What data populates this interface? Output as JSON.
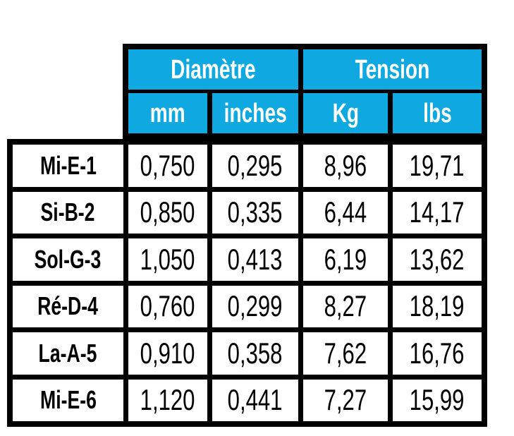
{
  "table": {
    "column_groups": [
      {
        "label": "Diamètre",
        "span": [
          "mm",
          "inches"
        ]
      },
      {
        "label": "Tension",
        "span": [
          "Kg",
          "lbs"
        ]
      }
    ],
    "columns": [
      "mm",
      "inches",
      "Kg",
      "lbs"
    ],
    "rows": [
      {
        "label": "Mi-E-1",
        "values": [
          "0,750",
          "0,295",
          "8,96",
          "19,71"
        ]
      },
      {
        "label": "Si-B-2",
        "values": [
          "0,850",
          "0,335",
          "6,44",
          "14,17"
        ]
      },
      {
        "label": "Sol-G-3",
        "values": [
          "1,050",
          "0,413",
          "6,19",
          "13,62"
        ]
      },
      {
        "label": "Ré-D-4",
        "values": [
          "0,760",
          "0,299",
          "8,27",
          "18,19"
        ]
      },
      {
        "label": "La-A-5",
        "values": [
          "0,910",
          "0,358",
          "7,62",
          "16,76"
        ]
      },
      {
        "label": "Mi-E-6",
        "values": [
          "1,120",
          "0,441",
          "7,27",
          "15,99"
        ]
      }
    ]
  },
  "chart_data": {
    "type": "table",
    "title": "",
    "column_groups": [
      {
        "label": "Diamètre",
        "columns": [
          "mm",
          "inches"
        ]
      },
      {
        "label": "Tension",
        "columns": [
          "Kg",
          "lbs"
        ]
      }
    ],
    "columns": [
      "",
      "mm",
      "inches",
      "Kg",
      "lbs"
    ],
    "rows": [
      [
        "Mi-E-1",
        "0,750",
        "0,295",
        "8,96",
        "19,71"
      ],
      [
        "Si-B-2",
        "0,850",
        "0,335",
        "6,44",
        "14,17"
      ],
      [
        "Sol-G-3",
        "1,050",
        "0,413",
        "6,19",
        "13,62"
      ],
      [
        "Ré-D-4",
        "0,760",
        "0,299",
        "8,27",
        "18,19"
      ],
      [
        "La-A-5",
        "0,910",
        "0,358",
        "7,62",
        "16,76"
      ],
      [
        "Mi-E-6",
        "1,120",
        "0,441",
        "7,27",
        "15,99"
      ]
    ],
    "decimal_separator": ",",
    "layout": {
      "header_rows": 2,
      "label_column": true,
      "grid": "thick-black-borders"
    }
  },
  "colors": {
    "header_bg": "#0fa8e0",
    "header_text": "#ffffff",
    "border": "#000000",
    "cell_bg": "#ffffff",
    "cell_text": "#000000",
    "page_bg": "#ffffff"
  }
}
